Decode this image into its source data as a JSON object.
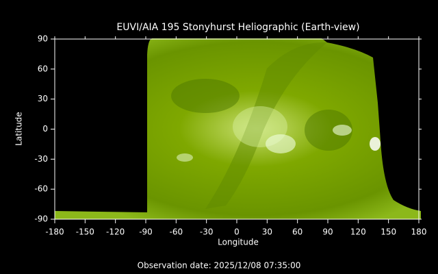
{
  "chart_data": {
    "type": "image",
    "title": "EUVI/AIA 195 Stonyhurst Heliographic (Earth-view)",
    "xlabel": "Longitude",
    "ylabel": "Latitude",
    "footer": "Observation date: 2025/12/08 07:35:00",
    "xlim": [
      -180,
      180
    ],
    "ylim": [
      -90,
      90
    ],
    "xticks": [
      -180,
      -150,
      -120,
      -90,
      -60,
      -30,
      0,
      30,
      60,
      90,
      120,
      150,
      180
    ],
    "yticks": [
      -90,
      -60,
      -30,
      0,
      30,
      60,
      90
    ],
    "color": "#7fa800"
  }
}
